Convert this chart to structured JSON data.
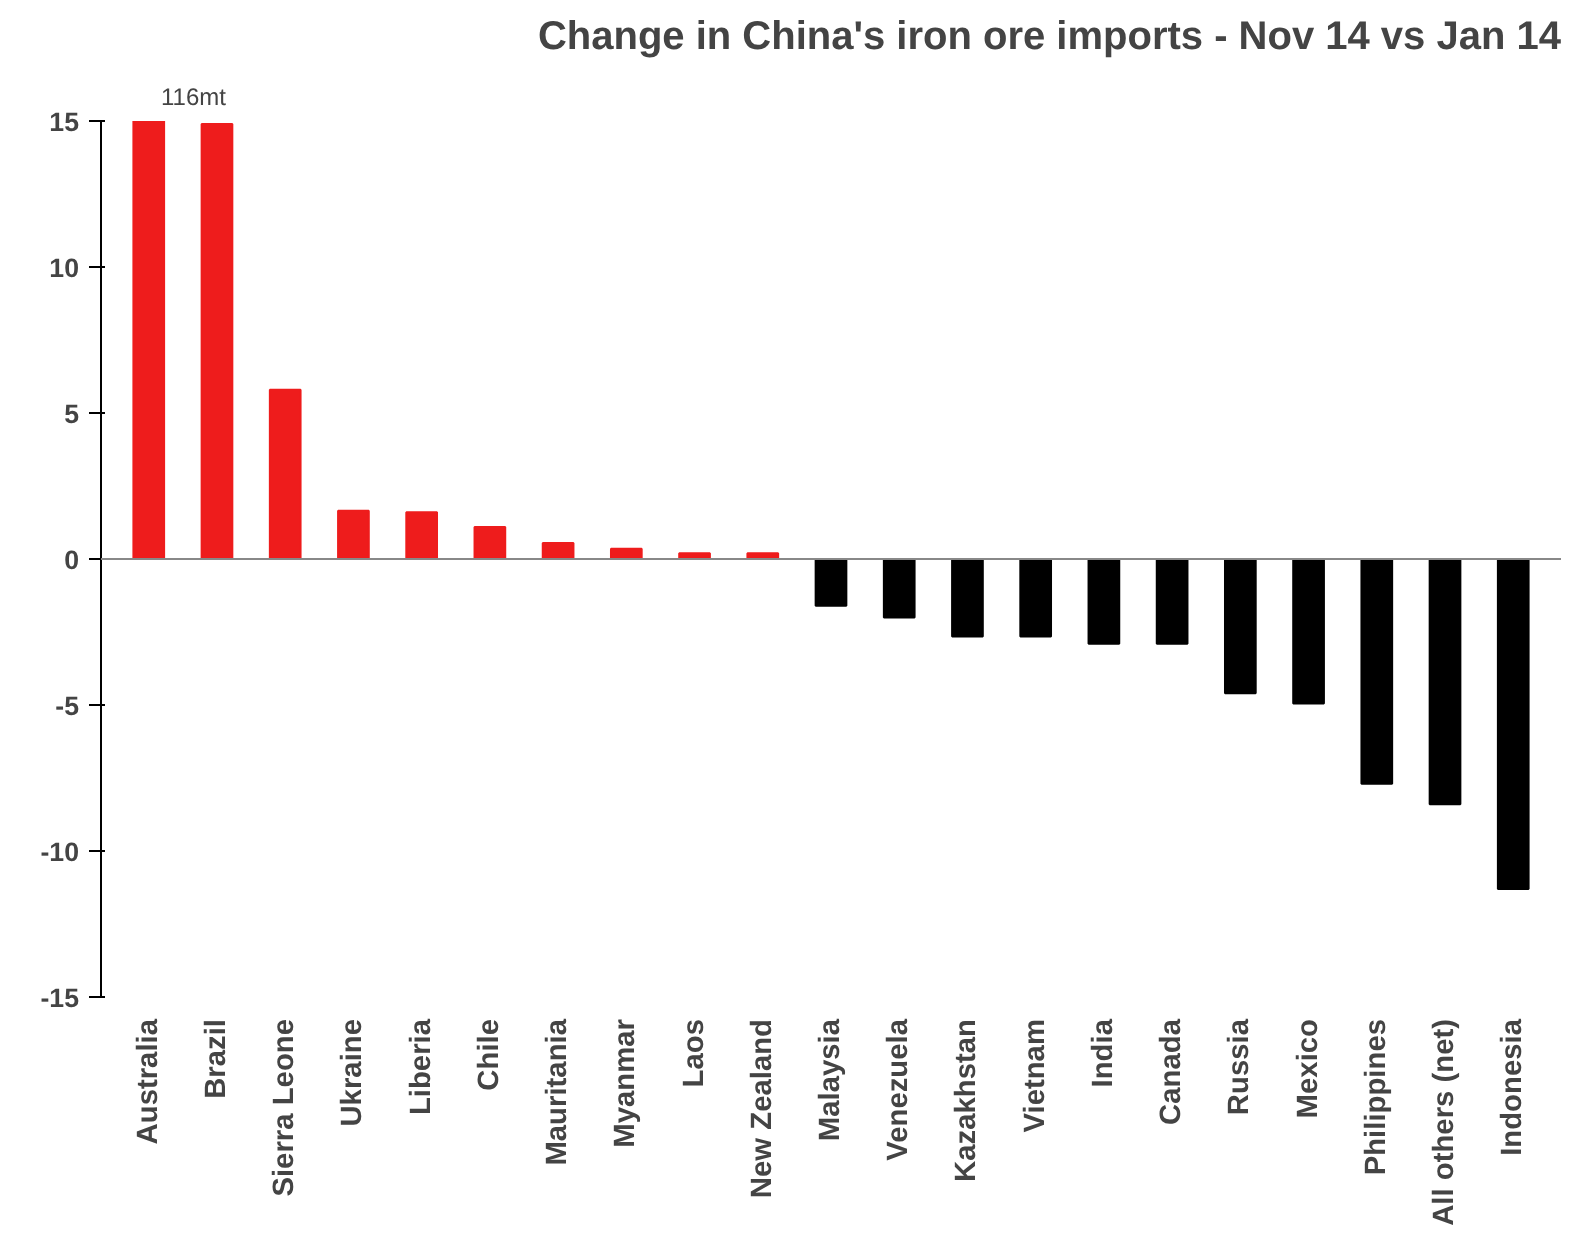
{
  "chart_data": {
    "type": "bar",
    "title": "Change in China's iron ore imports - Nov 14 vs Jan 14",
    "categories": [
      "Australia",
      "Brazil",
      "Sierra Leone",
      "Ukraine",
      "Liberia",
      "Chile",
      "Mauritania",
      "Myanmar",
      "Laos",
      "New Zealand",
      "Malaysia",
      "Venezuela",
      "Kazakhstan",
      "Vietnam",
      "India",
      "Canada",
      "Russia",
      "Mexico",
      "Philippines",
      "All others (net)",
      "Indonesia"
    ],
    "values": [
      15,
      14.9,
      5.8,
      1.65,
      1.6,
      1.1,
      0.55,
      0.35,
      0.2,
      0.2,
      -1.6,
      -2.0,
      -2.65,
      -2.65,
      -2.9,
      -2.9,
      -4.6,
      -4.95,
      -7.7,
      -8.4,
      -11.3
    ],
    "colors": [
      "#ee1c1c",
      "#ee1c1c",
      "#ee1c1c",
      "#ee1c1c",
      "#ee1c1c",
      "#ee1c1c",
      "#ee1c1c",
      "#ee1c1c",
      "#ee1c1c",
      "#ee1c1c",
      "#000000",
      "#000000",
      "#000000",
      "#000000",
      "#000000",
      "#000000",
      "#000000",
      "#000000",
      "#000000",
      "#000000",
      "#000000"
    ],
    "ylim": [
      -15,
      15
    ],
    "yticks": [
      -15,
      -10,
      -5,
      0,
      5,
      10,
      15
    ],
    "ref_lines": [
      {
        "axis": "y",
        "value": 0,
        "color": "#888888"
      }
    ],
    "annotations": [
      "116mt"
    ],
    "grid": false
  }
}
